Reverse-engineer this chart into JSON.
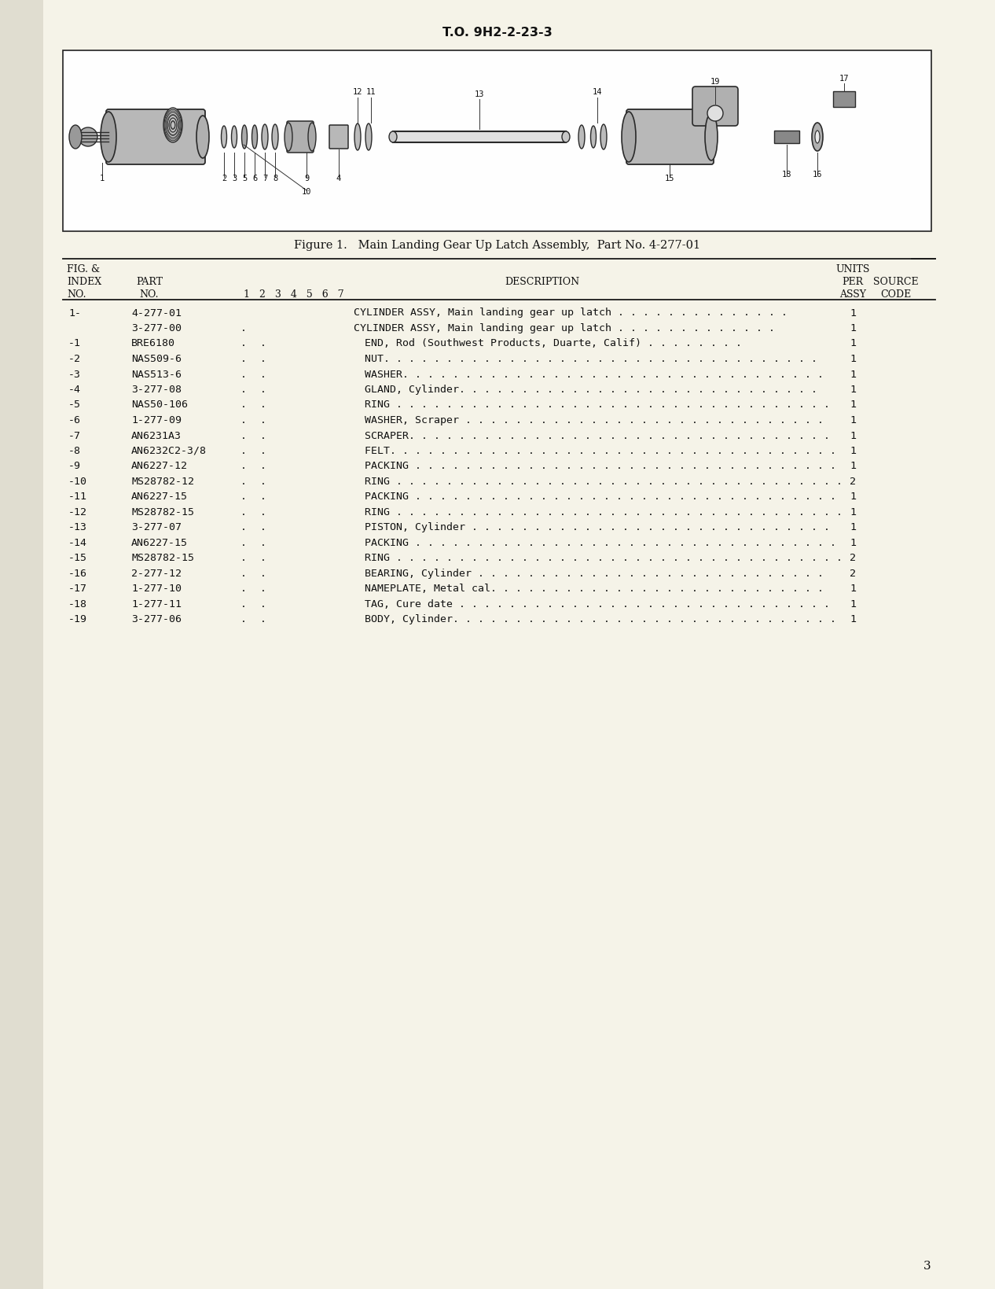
{
  "page_bg": "#faf8f0",
  "paper_bg": "#f5f3e8",
  "header_text": "T.O. 9H2-2-23-3",
  "figure_caption": "Figure 1.   Main Landing Gear Up Latch Assembly,  Part No. 4-277-01",
  "page_number": "3",
  "rows": [
    {
      "index": "1-",
      "part": "4-277-01",
      "d1": "",
      "d2": "",
      "desc": "CYLINDER ASSY, Main landing gear up latch . . . . . . . . . . . . . .",
      "qty": "1"
    },
    {
      "index": "",
      "part": "3-277-00",
      "d1": ".",
      "d2": "",
      "desc": "CYLINDER ASSY, Main landing gear up latch . . . . . . . . . . . . .",
      "qty": "1"
    },
    {
      "index": "-1",
      "part": "BRE6180",
      "d1": ".",
      "d2": ".",
      "desc": "END, Rod (Southwest Products, Duarte, Calif) . . . . . . . .",
      "qty": "1"
    },
    {
      "index": "-2",
      "part": "NAS509-6",
      "d1": ".",
      "d2": ".",
      "desc": "NUT. . . . . . . . . . . . . . . . . . . . . . . . . . . . . . . . . . .",
      "qty": "1"
    },
    {
      "index": "-3",
      "part": "NAS513-6",
      "d1": ".",
      "d2": ".",
      "desc": "WASHER. . . . . . . . . . . . . . . . . . . . . . . . . . . . . . . . . .",
      "qty": "1"
    },
    {
      "index": "-4",
      "part": "3-277-08",
      "d1": ".",
      "d2": ".",
      "desc": "GLAND, Cylinder. . . . . . . . . . . . . . . . . . . . . . . . . . . . .",
      "qty": "1"
    },
    {
      "index": "-5",
      "part": "NAS50-106",
      "d1": ".",
      "d2": ".",
      "desc": "RING . . . . . . . . . . . . . . . . . . . . . . . . . . . . . . . . . . .",
      "qty": "1"
    },
    {
      "index": "-6",
      "part": "1-277-09",
      "d1": ".",
      "d2": ".",
      "desc": "WASHER, Scraper . . . . . . . . . . . . . . . . . . . . . . . . . . . . .",
      "qty": "1"
    },
    {
      "index": "-7",
      "part": "AN6231A3",
      "d1": ".",
      "d2": ".",
      "desc": "SCRAPER. . . . . . . . . . . . . . . . . . . . . . . . . . . . . . . . . .",
      "qty": "1"
    },
    {
      "index": "-8",
      "part": "AN6232C2-3/8",
      "d1": ".",
      "d2": ".",
      "desc": "FELT. . . . . . . . . . . . . . . . . . . . . . . . . . . . . . . . . . . .",
      "qty": "1"
    },
    {
      "index": "-9",
      "part": "AN6227-12",
      "d1": ".",
      "d2": ".",
      "desc": "PACKING . . . . . . . . . . . . . . . . . . . . . . . . . . . . . . . . . .",
      "qty": "1"
    },
    {
      "index": "-10",
      "part": "MS28782-12",
      "d1": ".",
      "d2": ".",
      "desc": "RING . . . . . . . . . . . . . . . . . . . . . . . . . . . . . . . . . . . .",
      "qty": "2"
    },
    {
      "index": "-11",
      "part": "AN6227-15",
      "d1": ".",
      "d2": ".",
      "desc": "PACKING . . . . . . . . . . . . . . . . . . . . . . . . . . . . . . . . . .",
      "qty": "1"
    },
    {
      "index": "-12",
      "part": "MS28782-15",
      "d1": ".",
      "d2": ".",
      "desc": "RING . . . . . . . . . . . . . . . . . . . . . . . . . . . . . . . . . . . .",
      "qty": "1"
    },
    {
      "index": "-13",
      "part": "3-277-07",
      "d1": ".",
      "d2": ".",
      "desc": "PISTON, Cylinder . . . . . . . . . . . . . . . . . . . . . . . . . . . . .",
      "qty": "1"
    },
    {
      "index": "-14",
      "part": "AN6227-15",
      "d1": ".",
      "d2": ".",
      "desc": "PACKING . . . . . . . . . . . . . . . . . . . . . . . . . . . . . . . . . .",
      "qty": "1"
    },
    {
      "index": "-15",
      "part": "MS28782-15",
      "d1": ".",
      "d2": ".",
      "desc": "RING . . . . . . . . . . . . . . . . . . . . . . . . . . . . . . . . . . . .",
      "qty": "2"
    },
    {
      "index": "-16",
      "part": "2-277-12",
      "d1": ".",
      "d2": ".",
      "desc": "BEARING, Cylinder . . . . . . . . . . . . . . . . . . . . . . . . . . . .",
      "qty": "2"
    },
    {
      "index": "-17",
      "part": "1-277-10",
      "d1": ".",
      "d2": ".",
      "desc": "NAMEPLATE, Metal cal. . . . . . . . . . . . . . . . . . . . . . . . . . .",
      "qty": "1"
    },
    {
      "index": "-18",
      "part": "1-277-11",
      "d1": ".",
      "d2": ".",
      "desc": "TAG, Cure date . . . . . . . . . . . . . . . . . . . . . . . . . . . . . .",
      "qty": "1"
    },
    {
      "index": "-19",
      "part": "3-277-06",
      "d1": ".",
      "d2": ".",
      "desc": "BODY, Cylinder. . . . . . . . . . . . . . . . . . . . . . . . . . . . . . .",
      "qty": "1"
    }
  ]
}
